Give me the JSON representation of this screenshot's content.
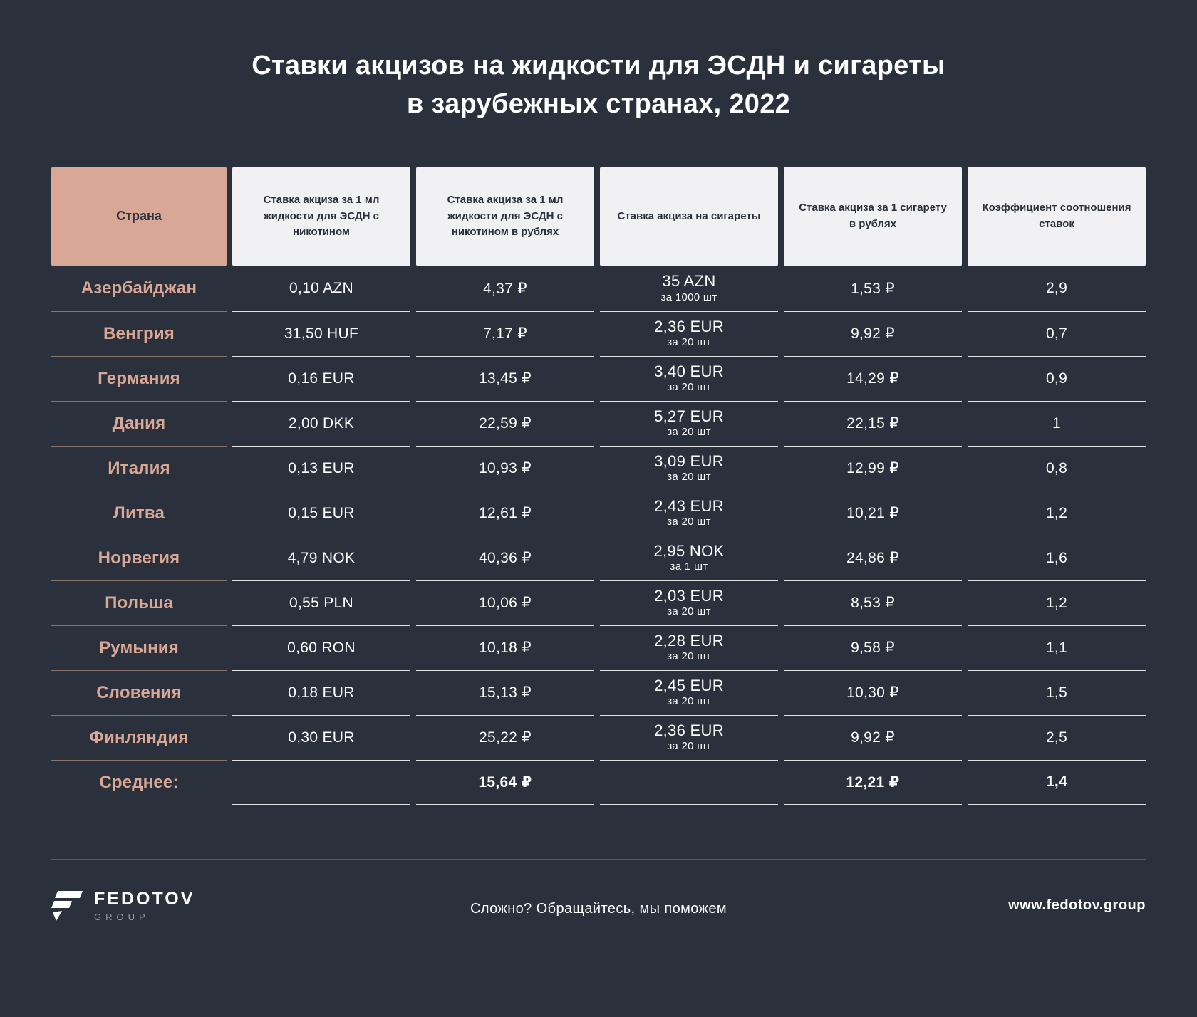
{
  "title": {
    "line1": "Ставки акцизов на жидкости для ЭСДН и сигареты",
    "line2": "в зарубежных странах, 2022"
  },
  "chart_data": {
    "type": "table",
    "title": "Ставки акцизов на жидкости для ЭСДН и сигареты в зарубежных странах, 2022",
    "columns": [
      {
        "key": "country",
        "header": "Страна"
      },
      {
        "key": "rate_local",
        "header": "Ставка акциза за 1 мл жидкости для ЭСДН с никотином"
      },
      {
        "key": "rate_rub",
        "header": "Ставка акциза за 1 мл жидкости для ЭСДН с никотином в рублях"
      },
      {
        "key": "cigarette",
        "header": "Ставка акциза на сигареты"
      },
      {
        "key": "cig_rub",
        "header": "Ставка акциза за 1 сигарету в рублях"
      },
      {
        "key": "ratio",
        "header": "Коэффициент соотношения ставок"
      }
    ],
    "rows": [
      {
        "country": "Азербайджан",
        "rate_local": "0,10 AZN",
        "rate_rub": "4,37 ₽",
        "cigarette": "35 AZN",
        "cigarette_unit": "за 1000 шт",
        "cig_rub": "1,53 ₽",
        "ratio": "2,9"
      },
      {
        "country": "Венгрия",
        "rate_local": "31,50 HUF",
        "rate_rub": "7,17 ₽",
        "cigarette": "2,36 EUR",
        "cigarette_unit": "за 20 шт",
        "cig_rub": "9,92 ₽",
        "ratio": "0,7"
      },
      {
        "country": "Германия",
        "rate_local": "0,16 EUR",
        "rate_rub": "13,45 ₽",
        "cigarette": "3,40 EUR",
        "cigarette_unit": "за 20 шт",
        "cig_rub": "14,29 ₽",
        "ratio": "0,9"
      },
      {
        "country": "Дания",
        "rate_local": "2,00 DKK",
        "rate_rub": "22,59 ₽",
        "cigarette": "5,27 EUR",
        "cigarette_unit": "за 20 шт",
        "cig_rub": "22,15 ₽",
        "ratio": "1"
      },
      {
        "country": "Италия",
        "rate_local": "0,13 EUR",
        "rate_rub": "10,93 ₽",
        "cigarette": "3,09 EUR",
        "cigarette_unit": "за 20 шт",
        "cig_rub": "12,99 ₽",
        "ratio": "0,8"
      },
      {
        "country": "Литва",
        "rate_local": "0,15 EUR",
        "rate_rub": "12,61 ₽",
        "cigarette": "2,43 EUR",
        "cigarette_unit": "за 20 шт",
        "cig_rub": "10,21 ₽",
        "ratio": "1,2"
      },
      {
        "country": "Норвегия",
        "rate_local": "4,79 NOK",
        "rate_rub": "40,36 ₽",
        "cigarette": "2,95 NOK",
        "cigarette_unit": "за 1 шт",
        "cig_rub": "24,86 ₽",
        "ratio": "1,6"
      },
      {
        "country": "Польша",
        "rate_local": "0,55 PLN",
        "rate_rub": "10,06 ₽",
        "cigarette": "2,03 EUR",
        "cigarette_unit": "за 20 шт",
        "cig_rub": "8,53 ₽",
        "ratio": "1,2"
      },
      {
        "country": "Румыния",
        "rate_local": "0,60 RON",
        "rate_rub": "10,18 ₽",
        "cigarette": "2,28 EUR",
        "cigarette_unit": "за 20 шт",
        "cig_rub": "9,58 ₽",
        "ratio": "1,1"
      },
      {
        "country": "Словения",
        "rate_local": "0,18 EUR",
        "rate_rub": "15,13 ₽",
        "cigarette": "2,45 EUR",
        "cigarette_unit": "за 20 шт",
        "cig_rub": "10,30 ₽",
        "ratio": "1,5"
      },
      {
        "country": "Финляндия",
        "rate_local": "0,30 EUR",
        "rate_rub": "25,22 ₽",
        "cigarette": "2,36 EUR",
        "cigarette_unit": "за 20 шт",
        "cig_rub": "9,92 ₽",
        "ratio": "2,5"
      },
      {
        "country": "Среднее:",
        "rate_local": "",
        "rate_rub": "15,64 ₽",
        "cigarette": "",
        "cigarette_unit": "",
        "cig_rub": "12,21 ₽",
        "ratio": "1,4",
        "is_summary": true
      }
    ]
  },
  "footer": {
    "brand": "FEDOTOV",
    "brand_sub": "GROUP",
    "tagline": "Сложно? Обращайтесь, мы поможем",
    "url": "www.fedotov.group"
  },
  "colors": {
    "background": "#2b313c",
    "accent": "#d9a795",
    "header_bg": "#f1f1f3",
    "header_text": "#2b313c",
    "value_text": "#ffffff"
  }
}
